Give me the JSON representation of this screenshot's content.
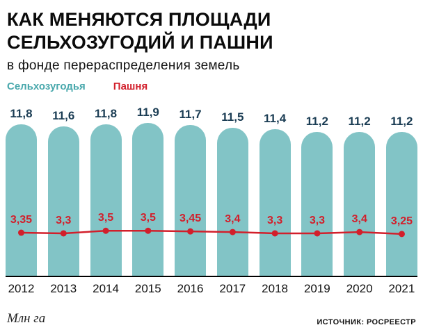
{
  "header": {
    "title_line1": "КАК МЕНЯЮТСЯ ПЛОЩАДИ",
    "title_line2": "СЕЛЬХОЗУГОДИЙ И ПАШНИ",
    "subtitle": "в фонде перераспределения земель"
  },
  "legend": {
    "series1_label": "Сельхозугодья",
    "series2_label": "Пашня"
  },
  "footer": {
    "units": "Млн га",
    "source": "ИСТОЧНИК: РОСРЕЕСТР"
  },
  "colors": {
    "bar": "#82c4c6",
    "bar_label": "#1b3d54",
    "line": "#d21f2b",
    "legend_bar_text": "#49a8ac",
    "axis": "#000000"
  },
  "chart_data": {
    "type": "bar",
    "title": "Как меняются площади сельхозугодий и пашни (в фонде перераспределения земель)",
    "xlabel": "",
    "ylabel": "Млн га",
    "ylim": [
      0,
      12
    ],
    "grid": false,
    "legend_position": "top-left",
    "categories": [
      "2012",
      "2013",
      "2014",
      "2015",
      "2016",
      "2017",
      "2018",
      "2019",
      "2020",
      "2021"
    ],
    "series": [
      {
        "name": "Сельхозугодья",
        "type": "bar",
        "values": [
          11.8,
          11.6,
          11.8,
          11.9,
          11.7,
          11.5,
          11.4,
          11.2,
          11.2,
          11.2
        ],
        "labels": [
          "11,8",
          "11,6",
          "11,8",
          "11,9",
          "11,7",
          "11,5",
          "11,4",
          "11,2",
          "11,2",
          "11,2"
        ]
      },
      {
        "name": "Пашня",
        "type": "line",
        "values": [
          3.35,
          3.3,
          3.5,
          3.5,
          3.45,
          3.4,
          3.3,
          3.3,
          3.4,
          3.25
        ],
        "labels": [
          "3,35",
          "3,3",
          "3,5",
          "3,5",
          "3,45",
          "3,4",
          "3,3",
          "3,3",
          "3,4",
          "3,25"
        ]
      }
    ]
  }
}
